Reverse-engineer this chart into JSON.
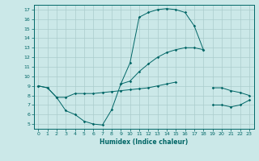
{
  "title": "",
  "xlabel": "Humidex (Indice chaleur)",
  "bg_color": "#cbe8e8",
  "grid_color": "#aacccc",
  "line_color": "#006666",
  "xlim": [
    -0.5,
    23.5
  ],
  "ylim": [
    4.5,
    17.5
  ],
  "yticks": [
    5,
    6,
    7,
    8,
    9,
    10,
    11,
    12,
    13,
    14,
    15,
    16,
    17
  ],
  "xticks": [
    0,
    1,
    2,
    3,
    4,
    5,
    6,
    7,
    8,
    9,
    10,
    11,
    12,
    13,
    14,
    15,
    16,
    17,
    18,
    19,
    20,
    21,
    22,
    23
  ],
  "line1_x": [
    0,
    1,
    2,
    3,
    4,
    5,
    6,
    7,
    8,
    9,
    10,
    11,
    12,
    13,
    14,
    15,
    16,
    17,
    18
  ],
  "line1_y": [
    9.0,
    8.8,
    7.8,
    6.4,
    6.0,
    5.3,
    5.0,
    4.9,
    6.5,
    9.2,
    11.4,
    16.2,
    16.7,
    17.0,
    17.1,
    17.0,
    16.7,
    15.3,
    12.8
  ],
  "line2_x": [
    0,
    1,
    2,
    3,
    4,
    5,
    6,
    7,
    8,
    9,
    10,
    11,
    12,
    13,
    14,
    15
  ],
  "line2_y": [
    9.0,
    8.8,
    7.8,
    7.8,
    8.2,
    8.2,
    8.2,
    8.3,
    8.4,
    8.5,
    8.6,
    8.7,
    8.8,
    9.0,
    9.2,
    9.4
  ],
  "line3_x": [
    9,
    10,
    11,
    12,
    13,
    14,
    15,
    16,
    17,
    18
  ],
  "line3_y": [
    9.2,
    9.5,
    10.5,
    11.3,
    12.0,
    12.5,
    12.8,
    13.0,
    13.0,
    12.8
  ],
  "line4_x": [
    19,
    20,
    21,
    22,
    23
  ],
  "line4_y": [
    8.8,
    8.8,
    8.5,
    8.3,
    8.0
  ],
  "line5_x": [
    19,
    20,
    21,
    22,
    23
  ],
  "line5_y": [
    7.0,
    7.0,
    6.8,
    7.0,
    7.5
  ]
}
